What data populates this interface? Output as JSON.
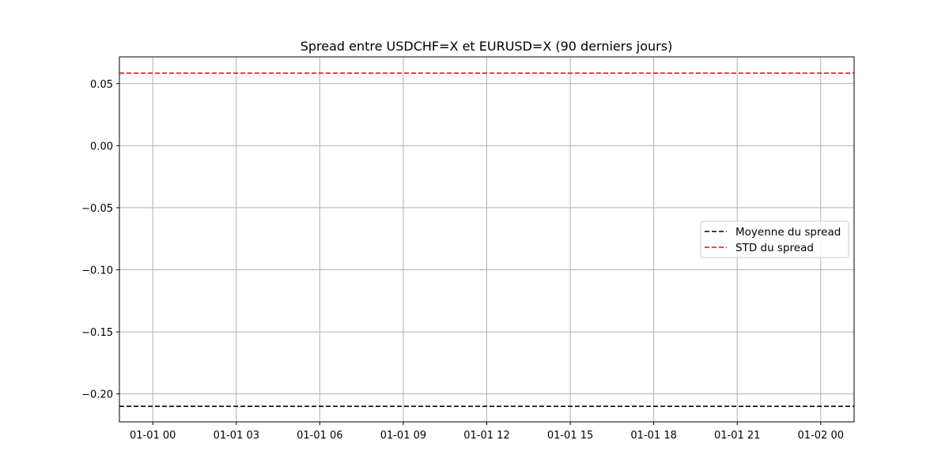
{
  "chart_data": {
    "type": "line",
    "title": "Spread entre USDCHF=X et EURUSD=X (90 derniers jours)",
    "xlabel": "",
    "ylabel": "",
    "x_ticks": [
      "01-01 00",
      "01-01 03",
      "01-01 06",
      "01-01 09",
      "01-01 12",
      "01-01 15",
      "01-01 18",
      "01-01 21",
      "01-02 00"
    ],
    "x_tick_hours": [
      0,
      3,
      6,
      9,
      12,
      15,
      18,
      21,
      24
    ],
    "xlim_hours": [
      -1.2,
      25.2
    ],
    "y_ticks": [
      0.05,
      0.0,
      -0.05,
      -0.1,
      -0.15,
      -0.2
    ],
    "y_tick_labels": [
      "0.05",
      "0.00",
      "−0.05",
      "−0.10",
      "−0.15",
      "−0.20"
    ],
    "ylim": [
      -0.2225,
      0.0715
    ],
    "grid": true,
    "legend_position": "center-right",
    "series": [
      {
        "name": "Moyenne du spread",
        "style": "dashed",
        "color": "#000000",
        "y": -0.21
      },
      {
        "name": "STD du spread",
        "style": "dashed",
        "color": "#ff0000",
        "y": 0.0584
      }
    ]
  }
}
